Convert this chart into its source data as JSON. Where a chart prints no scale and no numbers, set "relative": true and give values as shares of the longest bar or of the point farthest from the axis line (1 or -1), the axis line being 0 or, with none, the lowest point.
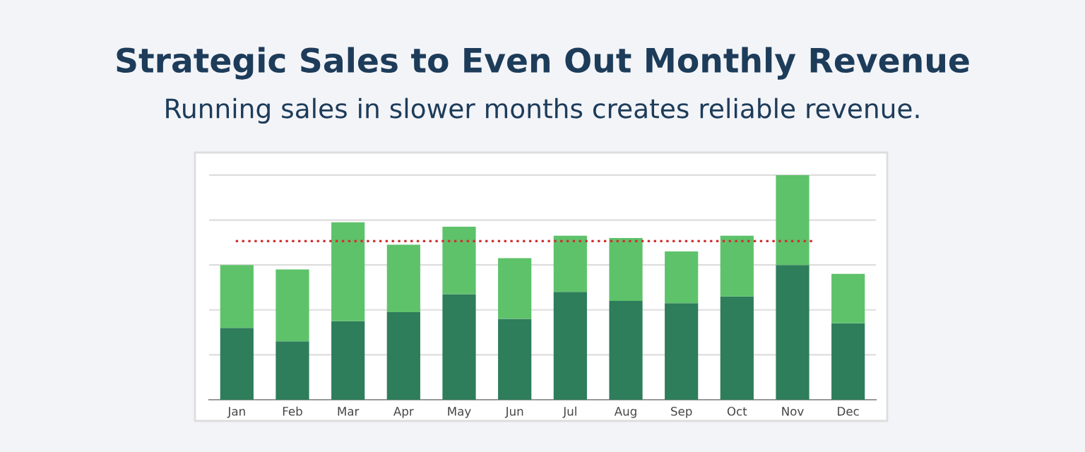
{
  "chart_data": {
    "type": "bar",
    "title": "Strategic Sales to Even Out Monthly Revenue",
    "subtitle": "Running sales in slower months creates reliable revenue.",
    "categories": [
      "Jan",
      "Feb",
      "Mar",
      "Apr",
      "May",
      "Jun",
      "Jul",
      "Aug",
      "Sep",
      "Oct",
      "Nov",
      "Dec"
    ],
    "stacked": true,
    "relative": true,
    "grid": "y",
    "legend": false,
    "series": [
      {
        "color": "#2e7d5b",
        "values": [
          0.32,
          0.26,
          0.35,
          0.39,
          0.47,
          0.36,
          0.48,
          0.44,
          0.43,
          0.46,
          0.6,
          0.34
        ]
      },
      {
        "color": "#5ec26a",
        "values": [
          0.28,
          0.32,
          0.44,
          0.3,
          0.3,
          0.27,
          0.25,
          0.28,
          0.23,
          0.27,
          0.4,
          0.22
        ]
      }
    ],
    "ref_lines": [
      {
        "axis": "y",
        "value": 0.706,
        "color": "#d03030",
        "line_style": "dotted"
      }
    ]
  }
}
